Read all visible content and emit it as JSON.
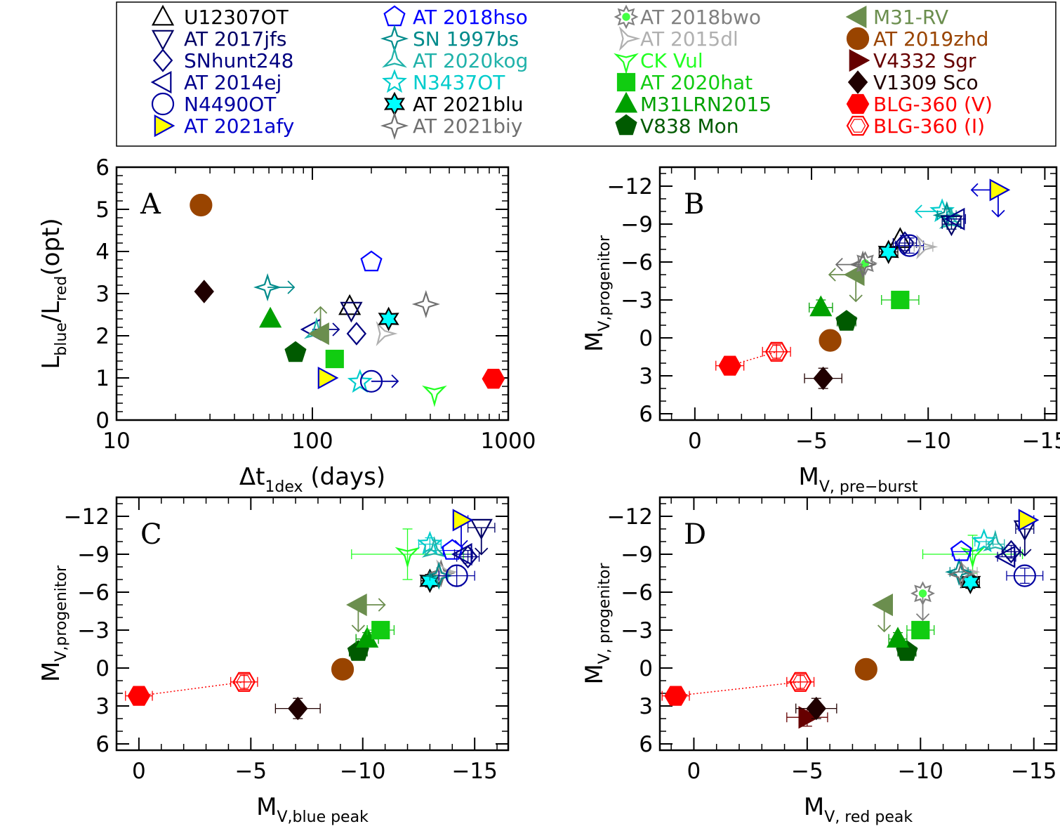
{
  "legend": [
    {
      "name": "U12307OT",
      "color": "#000000",
      "marker": "triangle-up",
      "fill": "none"
    },
    {
      "name": "AT 2017jfs",
      "color": "#000066",
      "marker": "triangle-down",
      "fill": "none"
    },
    {
      "name": "SNhunt248",
      "color": "#000080",
      "marker": "diamond",
      "fill": "none"
    },
    {
      "name": "AT 2014ej",
      "color": "#00008b",
      "marker": "triangle-left",
      "fill": "none"
    },
    {
      "name": "N4490OT",
      "color": "#0000a0",
      "marker": "circle",
      "fill": "none"
    },
    {
      "name": "AT 2021afy",
      "color": "#0000cc",
      "marker": "triangle-right",
      "fill": "#ffff00"
    },
    {
      "name": "AT 2018hso",
      "color": "#0000ff",
      "marker": "pentagon",
      "fill": "none"
    },
    {
      "name": "SN 1997bs",
      "color": "#008b8b",
      "marker": "star4",
      "fill": "none"
    },
    {
      "name": "AT 2020kog",
      "color": "#20b2aa",
      "marker": "tri3",
      "fill": "none"
    },
    {
      "name": "N3437OT",
      "color": "#00cccc",
      "marker": "star5",
      "fill": "none"
    },
    {
      "name": "AT 2021blu",
      "color": "#000000",
      "marker": "star6",
      "fill": "#00ffff"
    },
    {
      "name": "AT 2021biy",
      "color": "#707070",
      "marker": "star4",
      "fill": "none"
    },
    {
      "name": "AT 2018bwo",
      "color": "#808080",
      "marker": "star8",
      "fill": "#44ff44"
    },
    {
      "name": "AT 2015dl",
      "color": "#b0b0b0",
      "marker": "tri-right",
      "fill": "none"
    },
    {
      "name": "CK Vul",
      "color": "#22ff22",
      "marker": "tri-down",
      "fill": "none"
    },
    {
      "name": "AT 2020hat",
      "color": "#11cc11",
      "marker": "square",
      "fill": "#11cc11"
    },
    {
      "name": "M31LRN2015",
      "color": "#00a000",
      "marker": "triangle-up",
      "fill": "#00a000"
    },
    {
      "name": "V838 Mon",
      "color": "#005a00",
      "marker": "pentagon",
      "fill": "#005a00"
    },
    {
      "name": "M31-RV",
      "color": "#6b8e4e",
      "marker": "triangle-left",
      "fill": "#6b8e4e"
    },
    {
      "name": "AT 2019zhd",
      "color": "#994400",
      "marker": "circle",
      "fill": "#994400"
    },
    {
      "name": "V4332 Sgr",
      "color": "#660000",
      "marker": "triangle-right",
      "fill": "#660000"
    },
    {
      "name": "V1309 Sco",
      "color": "#200000",
      "marker": "diamond",
      "fill": "#200000"
    },
    {
      "name": "BLG-360 (V)",
      "color": "#ff0000",
      "marker": "hexagon",
      "fill": "#ff0000"
    },
    {
      "name": "BLG-360 (I)",
      "color": "#ff0000",
      "marker": "hexagon",
      "fill": "none"
    }
  ],
  "chart_data": [
    {
      "panel": "A",
      "type": "scatter",
      "xlabel": "Δt",
      "xlabel_sub": "1dex",
      "xlabel_suffix": " (days)",
      "ylabel": "L",
      "ylabel_sub1": "blue",
      "ylabel_mid": "/L",
      "ylabel_sub2": "red",
      "ylabel_suffix": "(opt)",
      "xscale": "log",
      "xlim": [
        10,
        1000
      ],
      "ylim": [
        0,
        6
      ],
      "xticks": [
        10,
        100,
        1000
      ],
      "xtick_labels": [
        "10",
        "100",
        "1000"
      ],
      "yticks": [
        0,
        1,
        2,
        3,
        4,
        5,
        6
      ],
      "ytick_labels": [
        "0",
        "1",
        "2",
        "3",
        "4",
        "5",
        "6"
      ],
      "points": [
        {
          "s": "AT 2019zhd",
          "x": 27,
          "y": 5.1
        },
        {
          "s": "V1309 Sco",
          "x": 28,
          "y": 3.05
        },
        {
          "s": "SN 1997bs",
          "x": 59,
          "y": 3.15,
          "arrows": [
            "right"
          ]
        },
        {
          "s": "M31LRN2015",
          "x": 61,
          "y": 2.4
        },
        {
          "s": "V838 Mon",
          "x": 82,
          "y": 1.6
        },
        {
          "s": "AT 2014ej",
          "x": 100,
          "y": 2.15,
          "arrows": [
            "right"
          ]
        },
        {
          "s": "AT 2020kog",
          "x": 105,
          "y": 2.1
        },
        {
          "s": "M31-RV",
          "x": 110,
          "y": 2.05,
          "arrows": [
            "up"
          ]
        },
        {
          "s": "AT 2021afy",
          "x": 118,
          "y": 1.0
        },
        {
          "s": "AT 2020hat",
          "x": 130,
          "y": 1.45
        },
        {
          "s": "U12307OT",
          "x": 155,
          "y": 2.7
        },
        {
          "s": "AT 2017jfs",
          "x": 158,
          "y": 2.6
        },
        {
          "s": "SNhunt248",
          "x": 168,
          "y": 2.05
        },
        {
          "s": "N3437OT",
          "x": 175,
          "y": 0.9
        },
        {
          "s": "AT 2018hso",
          "x": 200,
          "y": 3.75
        },
        {
          "s": "N4490OT",
          "x": 200,
          "y": 0.92,
          "arrows": [
            "right"
          ]
        },
        {
          "s": "AT 2015dl",
          "x": 230,
          "y": 2.05
        },
        {
          "s": "AT 2021blu",
          "x": 245,
          "y": 2.4
        },
        {
          "s": "AT 2021biy",
          "x": 380,
          "y": 2.75
        },
        {
          "s": "CK Vul",
          "x": 420,
          "y": 0.65
        },
        {
          "s": "BLG-360 (I)",
          "x": 840,
          "y": 0.98
        },
        {
          "s": "BLG-360 (V)",
          "x": 840,
          "y": 0.98
        }
      ]
    },
    {
      "panel": "B",
      "type": "scatter",
      "xlabel": "M",
      "xlabel_sub": "V, pre−burst",
      "ylabel": "M",
      "ylabel_sub": "V,progenitor",
      "xlim": [
        1.5,
        -15.5
      ],
      "ylim": [
        6.5,
        -13.5
      ],
      "xticks": [
        0,
        -5,
        -10,
        -15
      ],
      "xtick_labels": [
        "0",
        "−5",
        "−10",
        "−15"
      ],
      "yticks": [
        6,
        3,
        0,
        -3,
        -6,
        -9,
        -12
      ],
      "ytick_labels": [
        "6",
        "3",
        "0",
        "−3",
        "−6",
        "−9",
        "−12"
      ],
      "points": [
        {
          "s": "BLG-360 (V)",
          "x": -1.5,
          "y": 2.2,
          "xerr": 0.6,
          "yerr": 0.6
        },
        {
          "s": "BLG-360 (I)",
          "x": -3.5,
          "y": 1.1,
          "xerr": 0.6,
          "yerr": 0.6
        },
        {
          "s": "V1309 Sco",
          "x": -5.5,
          "y": 3.2,
          "xerr": 0.8,
          "yerr": 0.8
        },
        {
          "s": "AT 2019zhd",
          "x": -5.8,
          "y": 0.2
        },
        {
          "s": "M31LRN2015",
          "x": -5.4,
          "y": -2.4,
          "xerr": 0.5,
          "yerr": 0.6
        },
        {
          "s": "V838 Mon",
          "x": -6.5,
          "y": -1.3,
          "xerr": 0.4,
          "yerr": 0.5
        },
        {
          "s": "M31-RV",
          "x": -6.9,
          "y": -5.0,
          "arrows": [
            "left",
            "down"
          ]
        },
        {
          "s": "AT 2018bwo",
          "x": -7.3,
          "y": -5.9,
          "xerr": 0.3
        },
        {
          "s": "AT 2021biy",
          "x": -7.2,
          "y": -5.8,
          "arrows": [
            "left"
          ]
        },
        {
          "s": "AT 2020hat",
          "x": -8.8,
          "y": -3.0,
          "xerr": 0.8,
          "yerr": 0.5
        },
        {
          "s": "AT 2021blu",
          "x": -8.3,
          "y": -6.8,
          "xerr": 0.4,
          "yerr": 0.4
        },
        {
          "s": "U12307OT",
          "x": -8.8,
          "y": -7.8
        },
        {
          "s": "SNhunt248",
          "x": -9.0,
          "y": -7.5,
          "xerr": 0.5,
          "yerr": 0.6
        },
        {
          "s": "N4490OT",
          "x": -9.2,
          "y": -7.3,
          "xerr": 0.6,
          "yerr": 0.6
        },
        {
          "s": "AT 2015dl",
          "x": -9.8,
          "y": -7.2,
          "xerr": 0.4
        },
        {
          "s": "N3437OT",
          "x": -10.6,
          "y": -10.0,
          "arrows": [
            "left"
          ]
        },
        {
          "s": "SN 1997bs",
          "x": -10.8,
          "y": -9.7,
          "xerr": 0.4,
          "yerr": 0.5
        },
        {
          "s": "AT 2020kog",
          "x": -11.0,
          "y": -9.2,
          "xerr": 0.4,
          "yerr": 0.6
        },
        {
          "s": "AT 2017jfs",
          "x": -11.0,
          "y": -9.0,
          "xerr": 0.4,
          "yerr": 0.4
        },
        {
          "s": "AT 2014ej",
          "x": -11.2,
          "y": -9.4,
          "xerr": 0.4
        },
        {
          "s": "AT 2021afy",
          "x": -13.0,
          "y": -11.7,
          "arrows": [
            "left",
            "down"
          ]
        }
      ]
    },
    {
      "panel": "C",
      "type": "scatter",
      "xlabel": "M",
      "xlabel_sub": "V,blue peak",
      "ylabel": "M",
      "ylabel_sub": "V,progenitor",
      "xlim": [
        1,
        -16.5
      ],
      "ylim": [
        6.5,
        -13.5
      ],
      "xticks": [
        0,
        -5,
        -10,
        -15
      ],
      "xtick_labels": [
        "0",
        "−5",
        "−10",
        "−15"
      ],
      "yticks": [
        6,
        3,
        0,
        -3,
        -6,
        -9,
        -12
      ],
      "ytick_labels": [
        "6",
        "3",
        "0",
        "−3",
        "−6",
        "−9",
        "−12"
      ],
      "points": [
        {
          "s": "BLG-360 (V)",
          "x": 0.0,
          "y": 2.2,
          "xerr": 0.6,
          "yerr": 0.6
        },
        {
          "s": "BLG-360 (I)",
          "x": -4.7,
          "y": 1.1,
          "xerr": 0.6,
          "yerr": 0.6
        },
        {
          "s": "V1309 Sco",
          "x": -7.1,
          "y": 3.2,
          "xerr": 1.0,
          "yerr": 0.8
        },
        {
          "s": "AT 2019zhd",
          "x": -9.1,
          "y": 0.1
        },
        {
          "s": "V838 Mon",
          "x": -9.8,
          "y": -1.3,
          "xerr": 0.4,
          "yerr": 0.5
        },
        {
          "s": "M31LRN2015",
          "x": -10.2,
          "y": -2.3,
          "xerr": 0.5,
          "yerr": 0.5
        },
        {
          "s": "AT 2020hat",
          "x": -10.8,
          "y": -3.0,
          "xerr": 0.6,
          "yerr": 0.4
        },
        {
          "s": "M31-RV",
          "x": -9.8,
          "y": -5.0,
          "arrows": [
            "right",
            "down"
          ]
        },
        {
          "s": "CK Vul",
          "x": -12.0,
          "y": -9.0,
          "xerr": 2.5,
          "yerr": 2.0
        },
        {
          "s": "N3437OT",
          "x": -13.0,
          "y": -9.8,
          "xerr": 0.5,
          "yerr": 0.5
        },
        {
          "s": "AT 2020kog",
          "x": -13.2,
          "y": -9.3,
          "xerr": 0.4
        },
        {
          "s": "AT 2021blu",
          "x": -13.0,
          "y": -6.9,
          "xerr": 0.4,
          "yerr": 0.5
        },
        {
          "s": "AT 2021biy",
          "x": -13.5,
          "y": -7.5
        },
        {
          "s": "AT 2015dl",
          "x": -13.6,
          "y": -7.6,
          "xerr": 0.3
        },
        {
          "s": "SN 1997bs",
          "x": -13.4,
          "y": -7.3,
          "xerr": 0.4
        },
        {
          "s": "N4490OT",
          "x": -14.2,
          "y": -7.3,
          "xerr": 0.8,
          "yerr": 0.8
        },
        {
          "s": "SNhunt248",
          "x": -14.7,
          "y": -8.8,
          "xerr": 0.5,
          "yerr": 0.5
        },
        {
          "s": "AT 2017jfs",
          "x": -15.3,
          "y": -11.1,
          "xerr": 0.6,
          "arrows": [
            "down"
          ]
        },
        {
          "s": "AT 2021afy",
          "x": -14.4,
          "y": -11.7,
          "xerr": 0.3,
          "arrows": [
            "down"
          ]
        },
        {
          "s": "AT 2018hso",
          "x": -14.0,
          "y": -9.3,
          "xerr": 0.4
        },
        {
          "s": "AT 2014ej",
          "x": -14.5,
          "y": -9.0,
          "xerr": 0.4
        }
      ]
    },
    {
      "panel": "D",
      "type": "scatter",
      "xlabel": "M",
      "xlabel_sub": "V, red peak",
      "ylabel": "M",
      "ylabel_sub": "V, progenitor",
      "xlim": [
        1.5,
        -16
      ],
      "ylim": [
        6.5,
        -13.5
      ],
      "xticks": [
        0,
        -5,
        -10,
        -15
      ],
      "xtick_labels": [
        "0",
        "−5",
        "−10",
        "−15"
      ],
      "yticks": [
        6,
        3,
        0,
        -3,
        -6,
        -9,
        -12
      ],
      "ytick_labels": [
        "6",
        "3",
        "0",
        "−3",
        "−6",
        "−9",
        "−12"
      ],
      "points": [
        {
          "s": "BLG-360 (V)",
          "x": 0.8,
          "y": 2.2,
          "xerr": 0.6,
          "yerr": 0.5
        },
        {
          "s": "BLG-360 (I)",
          "x": -4.7,
          "y": 1.1,
          "xerr": 0.6,
          "yerr": 0.6
        },
        {
          "s": "V4332 Sgr",
          "x": -5.0,
          "y": 3.9,
          "xerr": 0.9,
          "yerr": 0.7
        },
        {
          "s": "V1309 Sco",
          "x": -5.4,
          "y": 3.2,
          "xerr": 0.9,
          "yerr": 0.8
        },
        {
          "s": "AT 2019zhd",
          "x": -7.6,
          "y": 0.1
        },
        {
          "s": "V838 Mon",
          "x": -9.4,
          "y": -1.3,
          "xerr": 0.4,
          "yerr": 0.4
        },
        {
          "s": "M31LRN2015",
          "x": -9.0,
          "y": -2.3,
          "xerr": 0.4,
          "yerr": 0.5
        },
        {
          "s": "M31-RV",
          "x": -8.4,
          "y": -5.0,
          "arrows": [
            "down"
          ]
        },
        {
          "s": "AT 2020hat",
          "x": -10.0,
          "y": -3.0,
          "xerr": 0.6,
          "yerr": 0.4
        },
        {
          "s": "AT 2018bwo",
          "x": -10.1,
          "y": -5.9,
          "arrows": [
            "down"
          ]
        },
        {
          "s": "AT 2021blu",
          "x": -12.2,
          "y": -6.8,
          "xerr": 0.4,
          "yerr": 0.5
        },
        {
          "s": "CK Vul",
          "x": -12.3,
          "y": -9.0,
          "xerr": 2.2,
          "yerr": 1.5
        },
        {
          "s": "AT 2015dl",
          "x": -12.0,
          "y": -7.6,
          "xerr": 0.5
        },
        {
          "s": "SN 1997bs",
          "x": -11.7,
          "y": -7.6,
          "xerr": 0.4
        },
        {
          "s": "AT 2021biy",
          "x": -11.8,
          "y": -7.4
        },
        {
          "s": "AT 2018hso",
          "x": -11.8,
          "y": -9.2,
          "xerr": 0.4
        },
        {
          "s": "N3437OT",
          "x": -12.8,
          "y": -10.0,
          "xerr": 0.4
        },
        {
          "s": "AT 2020kog",
          "x": -13.3,
          "y": -9.8,
          "xerr": 0.4
        },
        {
          "s": "AT 2014ej",
          "x": -13.8,
          "y": -8.8,
          "xerr": 0.4
        },
        {
          "s": "SNhunt248",
          "x": -14.0,
          "y": -9.2,
          "xerr": 0.4,
          "yerr": 0.5
        },
        {
          "s": "N4490OT",
          "x": -14.6,
          "y": -7.3,
          "xerr": 0.8,
          "yerr": 0.6
        },
        {
          "s": "AT 2017jfs",
          "x": -14.6,
          "y": -11.0,
          "xerr": 0.4,
          "arrows": [
            "down"
          ]
        },
        {
          "s": "AT 2021afy",
          "x": -14.7,
          "y": -11.7,
          "xerr": 0.3
        }
      ]
    }
  ]
}
